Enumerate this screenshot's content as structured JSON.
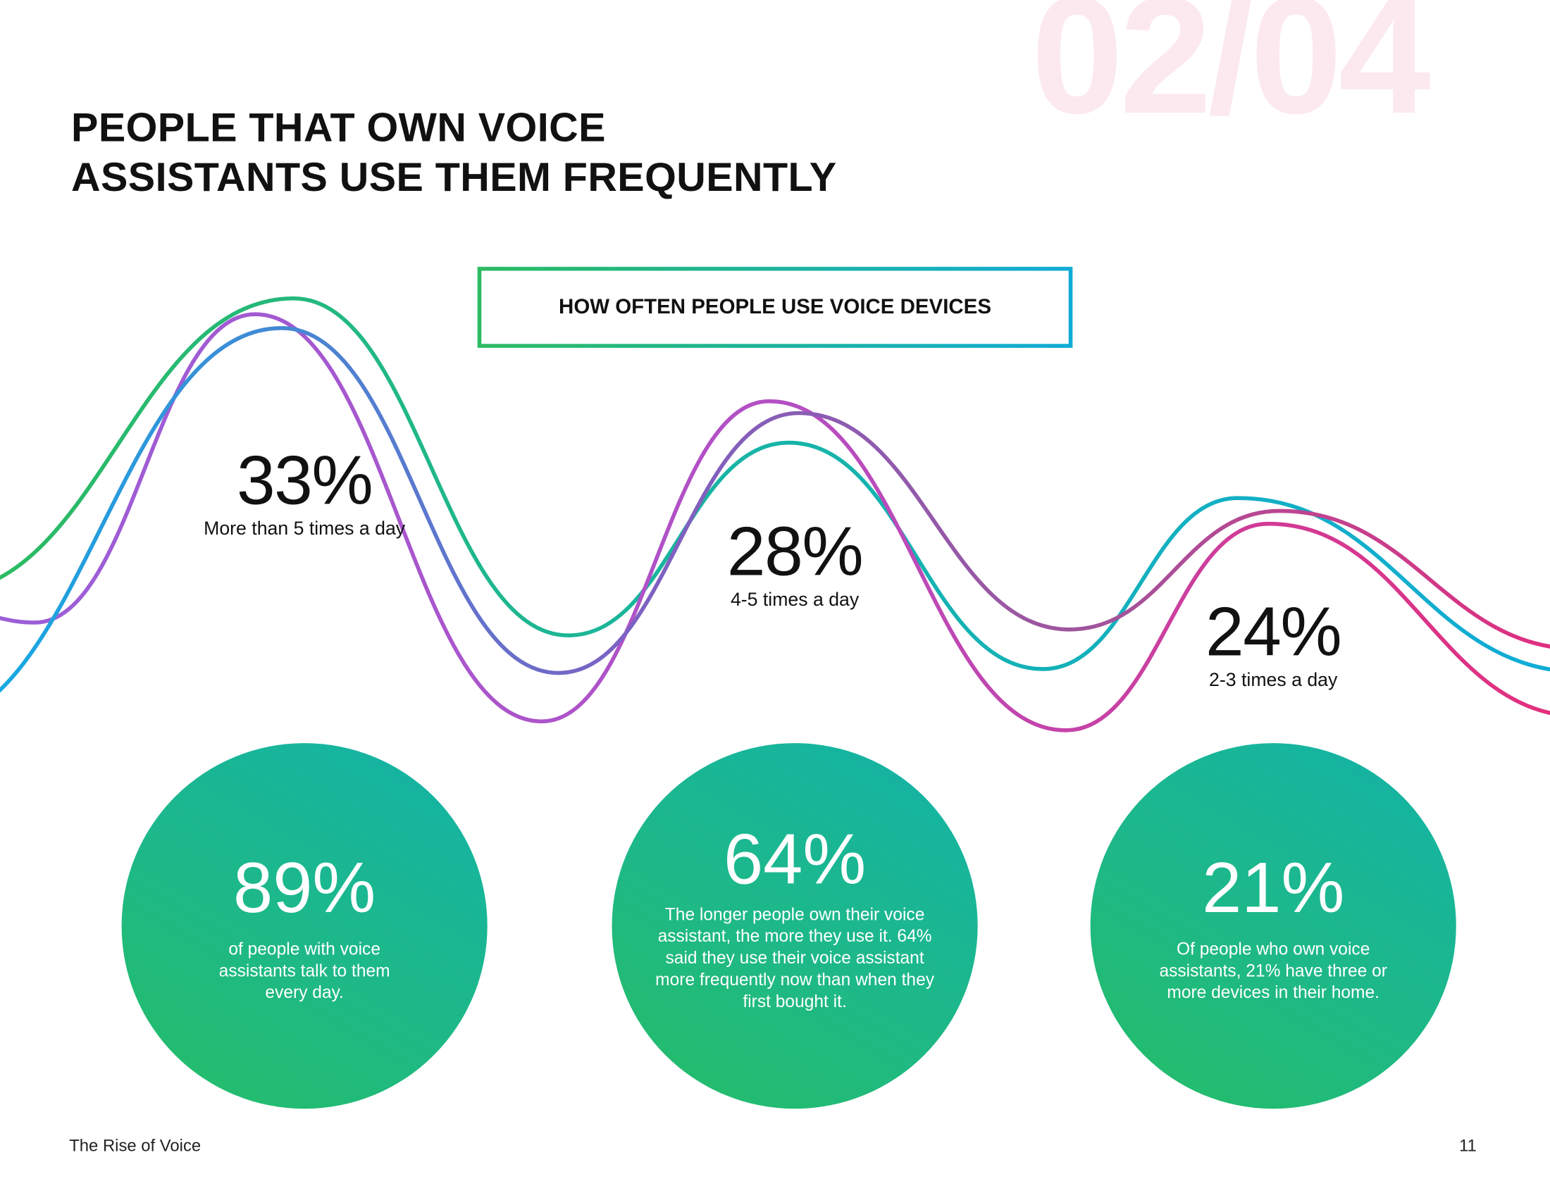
{
  "watermark": "02/04",
  "title": {
    "line1": "PEOPLE THAT OWN VOICE",
    "line2": "ASSISTANTS USE THEM FREQUENTLY"
  },
  "chart_box_title": "HOW OFTEN PEOPLE USE VOICE DEVICES",
  "stats": [
    {
      "value": "33%",
      "label": "More than 5 times a day"
    },
    {
      "value": "28%",
      "label": "4-5 times a day"
    },
    {
      "value": "24%",
      "label": "2-3 times a day"
    }
  ],
  "circles": [
    {
      "value": "89%",
      "text": "of people with voice assistants talk to them every day."
    },
    {
      "value": "64%",
      "text": "The longer people own their voice assistant, the more they use it. 64% said they use their voice assistant more frequently now than when they first bought it."
    },
    {
      "value": "21%",
      "text": "Of people who own voice assistants, 21% have three or more devices in their home."
    }
  ],
  "footer": {
    "publication": "The Rise of Voice",
    "page_number": "11"
  },
  "colors": {
    "green": "#2cbb62",
    "cyan": "#10acd7",
    "purple": "#9b59d6",
    "magenta": "#e0307e",
    "watermark": "#fce9ef"
  }
}
